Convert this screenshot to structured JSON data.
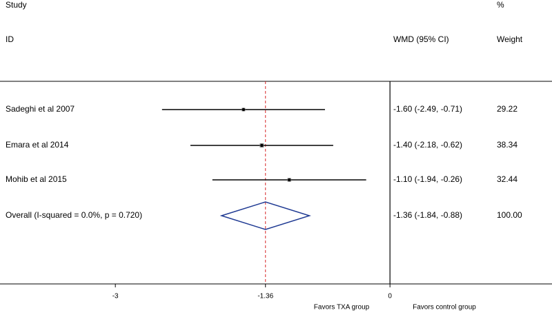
{
  "chart_data": {
    "type": "forest",
    "header": {
      "study": "Study",
      "id": "ID",
      "effect": "WMD (95% CI)",
      "percent": "%",
      "weight": "Weight"
    },
    "studies": [
      {
        "label": "Sadeghi et al 2007",
        "estimate": -1.6,
        "lower": -2.49,
        "upper": -0.71,
        "ci_label": "-1.60 (-2.49, -0.71)",
        "weight": 29.22
      },
      {
        "label": "Emara et al 2014",
        "estimate": -1.4,
        "lower": -2.18,
        "upper": -0.62,
        "ci_label": "-1.40 (-2.18, -0.62)",
        "weight": 38.34
      },
      {
        "label": "Mohib et al 2015",
        "estimate": -1.1,
        "lower": -1.94,
        "upper": -0.26,
        "ci_label": "-1.10 (-1.94, -0.26)",
        "weight": 32.44
      }
    ],
    "overall": {
      "label": "Overall  (I-squared = 0.0%, p = 0.720)",
      "estimate": -1.36,
      "lower": -1.84,
      "upper": -0.88,
      "ci_label": "-1.36 (-1.84, -0.88)",
      "weight": "100.00"
    },
    "xlim": [
      -4.26,
      1.77
    ],
    "xticks": [
      -3,
      -1.36,
      0
    ],
    "favors_left": "Favors TXA group",
    "favors_right": "Favors control group",
    "line_color": "#000000",
    "diamond_color": "#1f3a93",
    "reference_color": "#d62728"
  }
}
